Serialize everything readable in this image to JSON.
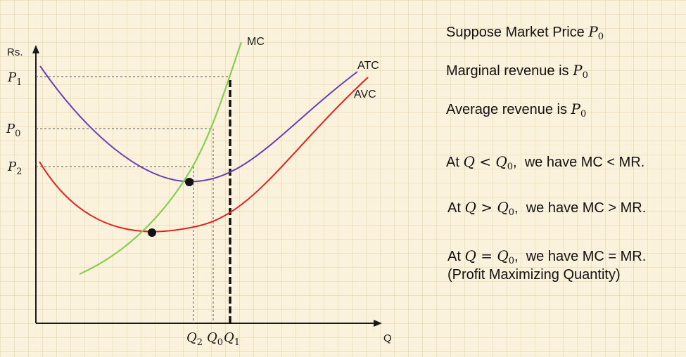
{
  "axes": {
    "y_label": "Rs.",
    "x_label": "Q"
  },
  "price_labels": [
    {
      "sym": "P",
      "sub": "1"
    },
    {
      "sym": "P",
      "sub": "0"
    },
    {
      "sym": "P",
      "sub": "2"
    }
  ],
  "quantity_labels": [
    {
      "sym": "Q",
      "sub": "2"
    },
    {
      "sym": "Q",
      "sub": "0"
    },
    {
      "sym": "Q",
      "sub": "1"
    }
  ],
  "curves": {
    "mc": {
      "label": "MC",
      "color": "#86cf4e"
    },
    "atc": {
      "label": "ATC",
      "color": "#6a3fb0"
    },
    "avc": {
      "label": "AVC",
      "color": "#e5211e"
    }
  },
  "explanation": {
    "line1": {
      "text": "Suppose Market Price ",
      "sym": "P",
      "sub": "0"
    },
    "line2": {
      "text": "Marginal revenue is ",
      "sym": "P",
      "sub": "0"
    },
    "line3": {
      "text": "Average revenue is ",
      "sym": "P",
      "sub": "0"
    },
    "line4": {
      "pre": "At ",
      "q": "Q",
      "op": " < ",
      "q0": "Q",
      "sub": "0",
      "post": ",  we have MC < MR."
    },
    "line5": {
      "pre": "At ",
      "q": "Q",
      "op": " > ",
      "q0": "Q",
      "sub": "0",
      "post": ",  we have MC > MR."
    },
    "line6": {
      "pre": "At ",
      "q": "Q",
      "op": " = ",
      "q0": "Q",
      "sub": "0",
      "post": ",  we have MC = MR."
    },
    "line7": "(Profit Maximizing Quantity)"
  }
}
